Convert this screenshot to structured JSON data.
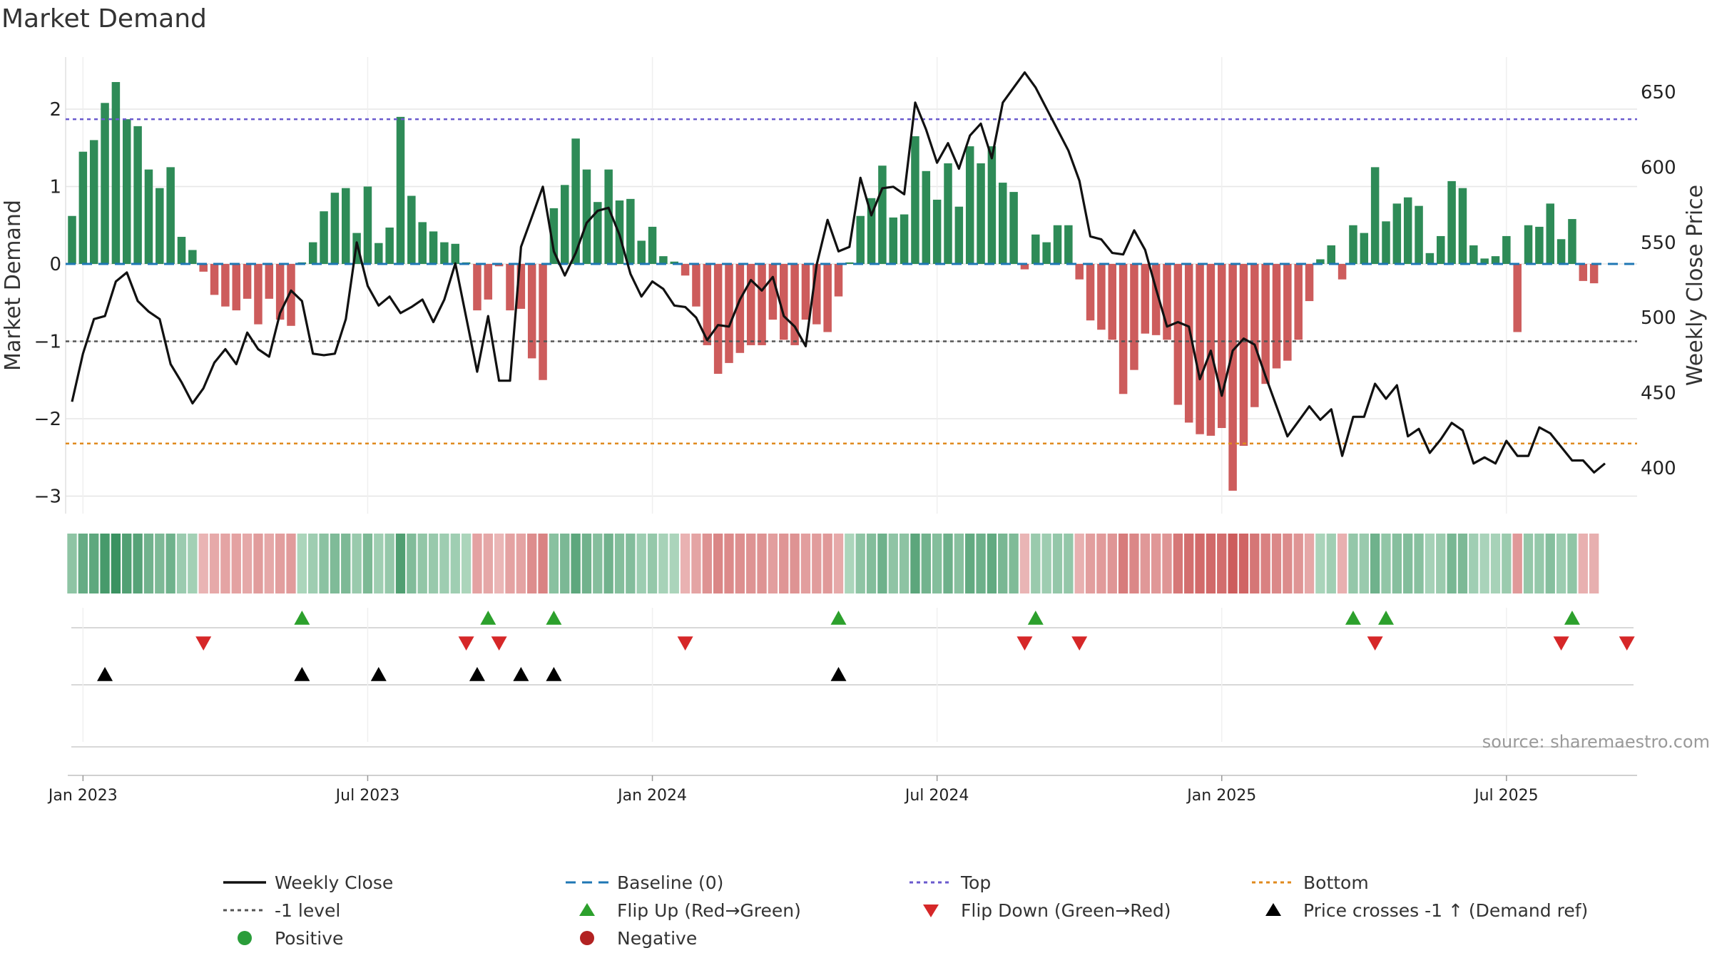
{
  "chart_data": {
    "type": "bar",
    "title": "Market Demand",
    "ylabel_left": "Market Demand",
    "ylabel_right": "Weekly Close Price",
    "ylim_left": [
      -3.2,
      2.5
    ],
    "ylim_right": [
      380,
      663
    ],
    "yticks_left": [
      2,
      1,
      0,
      -1,
      -2,
      -3
    ],
    "ytick_labels_left": [
      "2",
      "1",
      "0",
      "−1",
      "−2",
      "−3"
    ],
    "yticks_right": [
      650,
      600,
      550,
      500,
      450,
      400
    ],
    "ytick_labels_right": [
      "650",
      "600",
      "550",
      "500",
      "450",
      "400"
    ],
    "x_tick_labels": [
      "Jan 2023",
      "Jul 2023",
      "Jan 2024",
      "Jul 2024",
      "Jan 2025",
      "Jul 2025"
    ],
    "x_tick_weeks": [
      1,
      27,
      53,
      79,
      105,
      131
    ],
    "reference_lines": {
      "top": 1.87,
      "minus_one": -1.0,
      "bottom": -2.32,
      "baseline": 0
    },
    "colors": {
      "positive": "#2e8b57",
      "negative": "#cd5c5c",
      "close": "#111111",
      "baseline": "#1f77b4",
      "top": "#6a5acd",
      "minus_one": "#555555",
      "bottom": "#e08a1e",
      "flip_up": "#2ca02c",
      "flip_down": "#d62728",
      "cross": "#000000"
    },
    "demand": [
      0.62,
      1.45,
      1.6,
      2.08,
      2.35,
      1.87,
      1.78,
      1.22,
      0.98,
      1.25,
      0.35,
      0.18,
      -0.1,
      -0.4,
      -0.55,
      -0.6,
      -0.45,
      -0.78,
      -0.45,
      -0.72,
      -0.8,
      0.02,
      0.28,
      0.68,
      0.92,
      0.98,
      0.4,
      1.0,
      0.27,
      0.47,
      1.9,
      0.88,
      0.54,
      0.42,
      0.28,
      0.26,
      0.02,
      -0.6,
      -0.46,
      -0.03,
      -0.6,
      -0.58,
      -1.22,
      -1.5,
      0.72,
      1.02,
      1.62,
      1.22,
      0.8,
      1.22,
      0.82,
      0.84,
      0.3,
      0.48,
      0.1,
      0.03,
      -0.15,
      -0.55,
      -1.05,
      -1.42,
      -1.28,
      -1.15,
      -1.05,
      -1.05,
      -0.72,
      -0.98,
      -1.05,
      -0.72,
      -0.78,
      -0.88,
      -0.42,
      0.02,
      0.62,
      0.85,
      1.27,
      0.6,
      0.64,
      1.65,
      1.2,
      0.83,
      1.3,
      0.74,
      1.52,
      1.3,
      1.52,
      1.05,
      0.93,
      -0.07,
      0.38,
      0.28,
      0.5,
      0.5,
      -0.2,
      -0.73,
      -0.85,
      -0.98,
      -1.68,
      -1.37,
      -0.9,
      -0.92,
      -0.98,
      -1.82,
      -2.05,
      -2.2,
      -2.22,
      -2.12,
      -2.93,
      -2.35,
      -1.85,
      -1.55,
      -1.35,
      -1.25,
      -0.98,
      -0.48,
      0.06,
      0.24,
      -0.2,
      0.5,
      0.4,
      1.25,
      0.55,
      0.78,
      0.86,
      0.75,
      0.14,
      0.36,
      1.07,
      0.98,
      0.24,
      0.07,
      0.1,
      0.36,
      -0.88,
      0.5,
      0.48,
      0.78,
      0.32,
      0.58,
      -0.22,
      -0.25
    ],
    "weekly_close": [
      444,
      476,
      499,
      501,
      524,
      530,
      511,
      504,
      499,
      469,
      457,
      443,
      453,
      470,
      479,
      469,
      490,
      479,
      474,
      503,
      518,
      511,
      476,
      475,
      476,
      499,
      550,
      521,
      508,
      514,
      503,
      507,
      512,
      497,
      512,
      536,
      500,
      464,
      501,
      458,
      458,
      547,
      567,
      587,
      544,
      528,
      543,
      563,
      571,
      573,
      555,
      529,
      514,
      524,
      519,
      508,
      507,
      500,
      485,
      495,
      494,
      512,
      525,
      518,
      527,
      501,
      494,
      481,
      535,
      565,
      544,
      547,
      593,
      568,
      586,
      587,
      582,
      643,
      625,
      603,
      616,
      599,
      621,
      629,
      606,
      643,
      653,
      663,
      653,
      639,
      625,
      611,
      591,
      554,
      552,
      543,
      542,
      558,
      545,
      519,
      494,
      497,
      494,
      459,
      478,
      448,
      478,
      486,
      482,
      461,
      441,
      421,
      431,
      441,
      432,
      439,
      408,
      434,
      434,
      456,
      446,
      455,
      421,
      426,
      410,
      419,
      430,
      425,
      403,
      407,
      403,
      418,
      408,
      408,
      427,
      423,
      414,
      405,
      405,
      397,
      403
    ],
    "flip_up_weeks": [
      21,
      38,
      44,
      70,
      88,
      117,
      120,
      137
    ],
    "flip_down_weeks": [
      12,
      36,
      39,
      56,
      87,
      92,
      119,
      136,
      142
    ],
    "price_cross_weeks": [
      3,
      21,
      28,
      37,
      41,
      44,
      70
    ]
  },
  "legend": [
    {
      "label": "Weekly Close",
      "marker": "line"
    },
    {
      "label": "Baseline (0)",
      "marker": "dashed"
    },
    {
      "label": "Top",
      "marker": "dotted"
    },
    {
      "label": "Bottom",
      "marker": "dotted"
    },
    {
      "label": "-1 level",
      "marker": "dotted"
    },
    {
      "label": "Flip Up (Red→Green)",
      "marker": "triangle-up"
    },
    {
      "label": "Flip Down (Green→Red)",
      "marker": "triangle-down"
    },
    {
      "label": "Price crosses -1 ↑ (Demand ref)",
      "marker": "triangle-up"
    },
    {
      "label": "Positive",
      "marker": "circle"
    },
    {
      "label": "Negative",
      "marker": "circle"
    }
  ],
  "source": "source: sharemaestro.com"
}
